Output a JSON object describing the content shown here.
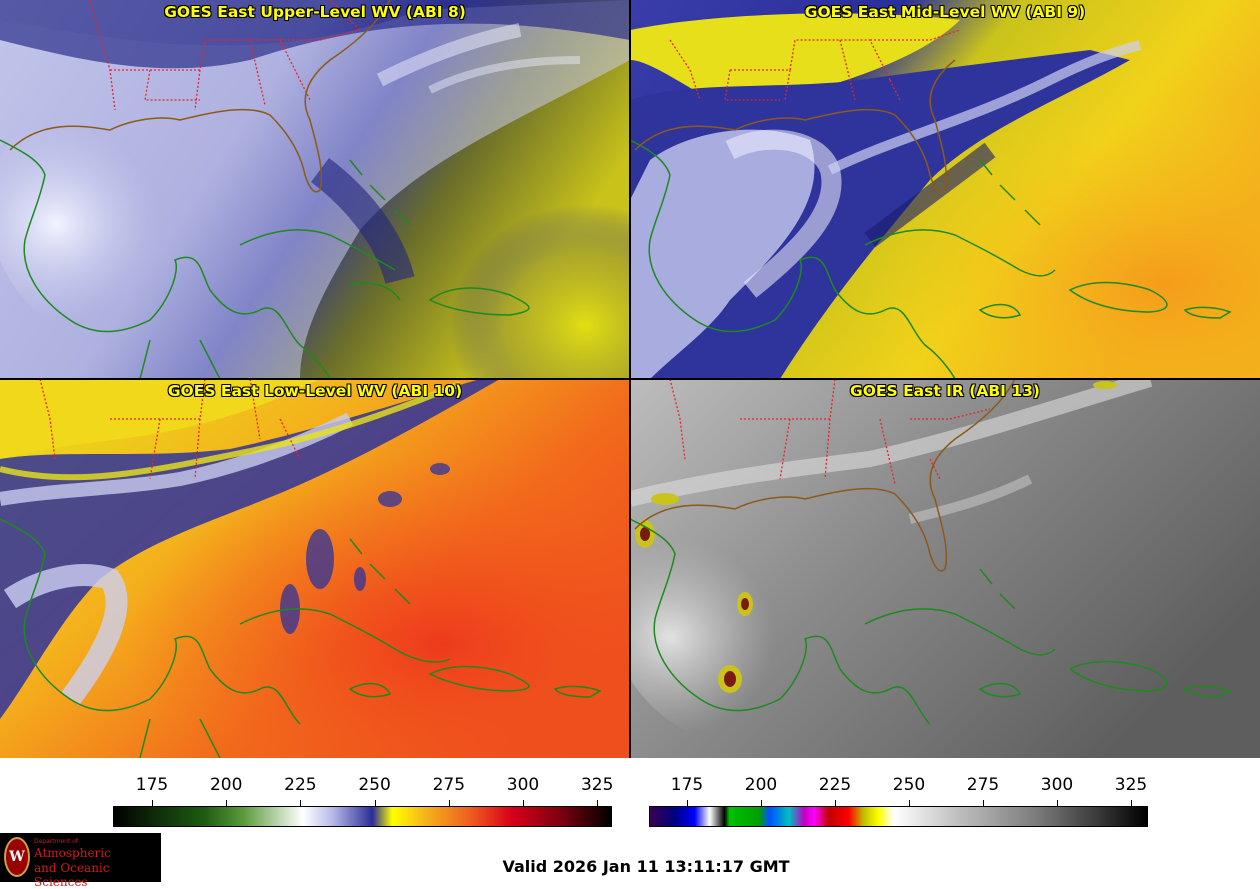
{
  "panels": {
    "upper": {
      "title": "GOES East Upper-Level WV (ABI 8)"
    },
    "mid": {
      "title": "GOES East Mid-Level WV (ABI 9)"
    },
    "low": {
      "title": "GOES East Low-Level WV (ABI 10)"
    },
    "ir": {
      "title": "GOES East IR (ABI 13)"
    }
  },
  "colorbars": {
    "wv": {
      "ticks": [
        "175",
        "200",
        "225",
        "250",
        "275",
        "300",
        "325"
      ]
    },
    "ir": {
      "ticks": [
        "175",
        "200",
        "225",
        "250",
        "275",
        "300",
        "325"
      ]
    }
  },
  "colors": {
    "state_borders": "#e8232b",
    "coastlines": "#1d8a1d",
    "title_text": "#ffff00"
  },
  "footer": {
    "valid": "Valid 2026 Jan 11 13:11:17 GMT"
  },
  "logo": {
    "line1": "Department of",
    "line2": "Atmospheric",
    "line3": "and Oceanic Sciences",
    "seal": "W"
  }
}
